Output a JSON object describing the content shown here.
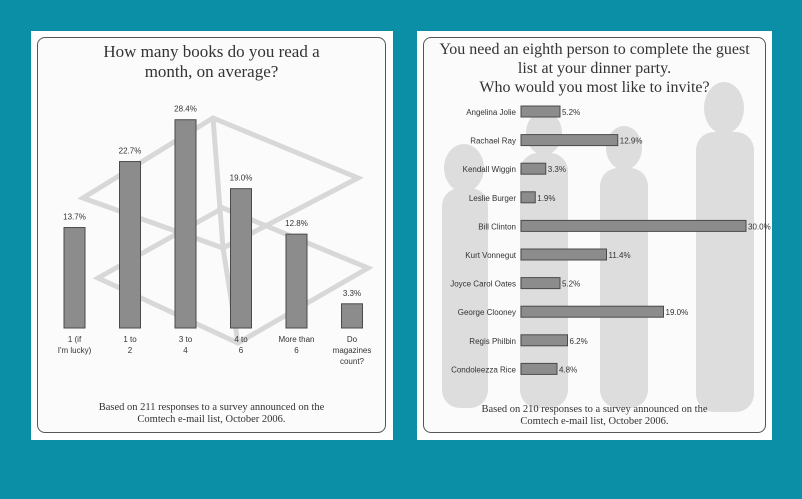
{
  "colors": {
    "background": "#0a8fa6",
    "bar": "#8c8c8c",
    "bar_stroke": "#4a4a4a"
  },
  "chart_data": [
    {
      "type": "bar",
      "title": "How many books do you read a\nmonth, on average?",
      "categories": [
        "1 (if I'm lucky)",
        "1 to 2",
        "3 to 4",
        "4 to 6",
        "More than 6",
        "Do magazines count?"
      ],
      "values": [
        13.7,
        22.7,
        28.4,
        19.0,
        12.8,
        3.3
      ],
      "value_labels": [
        "13.7%",
        "22.7%",
        "28.4%",
        "19.0%",
        "12.8%",
        "3.3%"
      ],
      "ylim": [
        0,
        30
      ],
      "grid": false,
      "footnote": "Based on 211 responses to a survey announced on the\nComtech e-mail list, October 2006."
    },
    {
      "type": "bar",
      "orientation": "horizontal",
      "title": "You need an eighth person to complete the guest\nlist at your dinner party.\nWho would you most like to invite?",
      "categories": [
        "Angelina Jolie",
        "Rachael Ray",
        "Kendall Wiggin",
        "Leslie Burger",
        "Bill Clinton",
        "Kurt Vonnegut",
        "Joyce Carol Oates",
        "George Clooney",
        "Regis Philbin",
        "Condoleezza Rice"
      ],
      "values": [
        5.2,
        12.9,
        3.3,
        1.9,
        30.0,
        11.4,
        5.2,
        19.0,
        6.2,
        4.8
      ],
      "value_labels": [
        "5.2%",
        "12.9%",
        "3.3%",
        "1.9%",
        "30.0%",
        "11.4%",
        "5.2%",
        "19.0%",
        "6.2%",
        "4.8%"
      ],
      "xlim": [
        0,
        30
      ],
      "grid": false,
      "footnote": "Based on 210 responses to a survey announced on the\nComtech e-mail list, October 2006."
    }
  ]
}
